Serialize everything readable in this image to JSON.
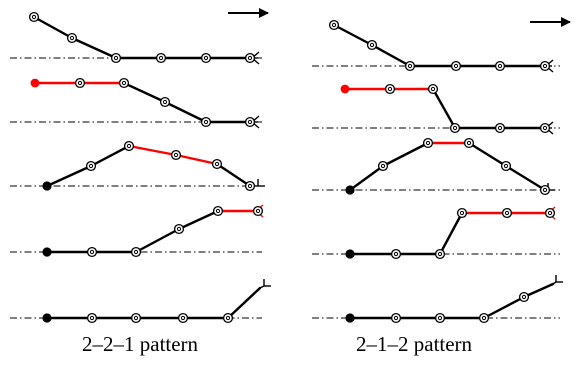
{
  "captions": {
    "left": "2–2–1 pattern",
    "right": "2–1–2 pattern"
  },
  "colors": {
    "line": "#000000",
    "highlight": "#ff0000",
    "background": "#ffffff"
  },
  "icons": {
    "direction": "arrow-right-icon",
    "node": "circled-dot-node-icon",
    "start": "filled-dot-icon",
    "end": "fork-end-icon"
  }
}
